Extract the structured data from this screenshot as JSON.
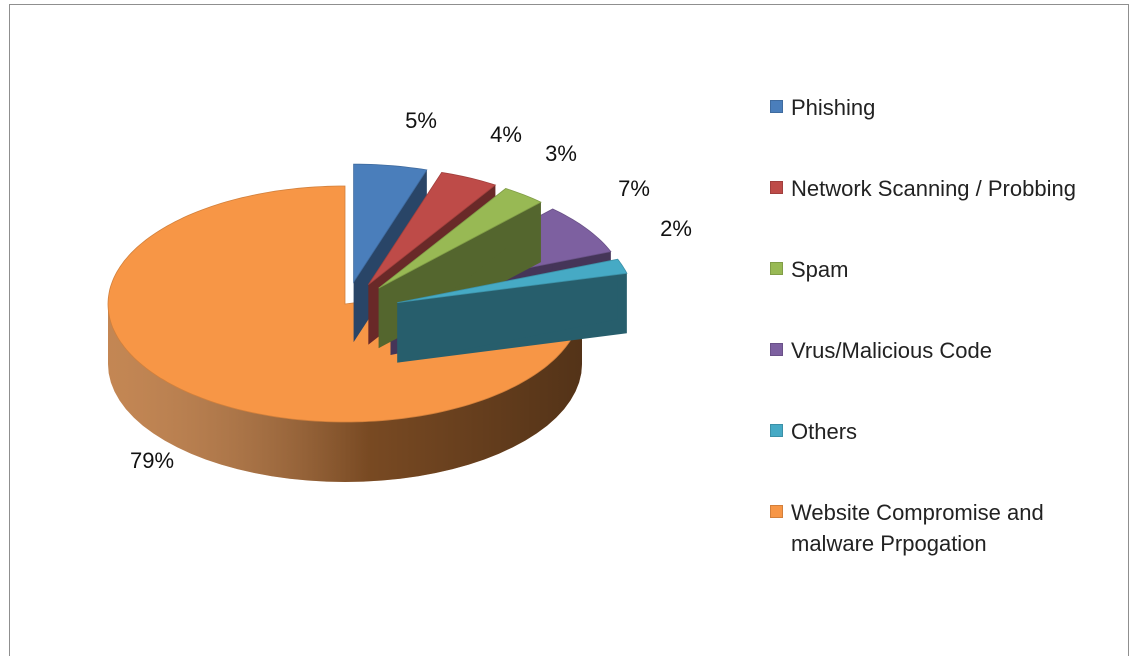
{
  "chart_data": {
    "type": "pie",
    "three_d": true,
    "exploded": true,
    "categories": [
      "Phishing",
      "Network Scanning / Probbing",
      "Spam",
      "Vrus/Malicious Code",
      "Others",
      "Website Compromise and malware Prpogation"
    ],
    "values": [
      5,
      4,
      3,
      7,
      2,
      79
    ],
    "data_labels": [
      "5%",
      "4%",
      "3%",
      "7%",
      "2%",
      "79%"
    ],
    "colors": [
      "#4a7ebb",
      "#be4b48",
      "#98b954",
      "#7d60a0",
      "#46aac5",
      "#f79646"
    ],
    "legend_position": "right",
    "legend": [
      {
        "label": "Phishing",
        "color": "#4a7ebb"
      },
      {
        "label": "Network Scanning / Probbing",
        "color": "#be4b48"
      },
      {
        "label": "Spam",
        "color": "#98b954"
      },
      {
        "label": "Vrus/Malicious Code",
        "color": "#7d60a0"
      },
      {
        "label": "Others",
        "color": "#46aac5"
      },
      {
        "label": "Website Compromise and\nmalware Prpogation",
        "color": "#f79646"
      }
    ]
  }
}
